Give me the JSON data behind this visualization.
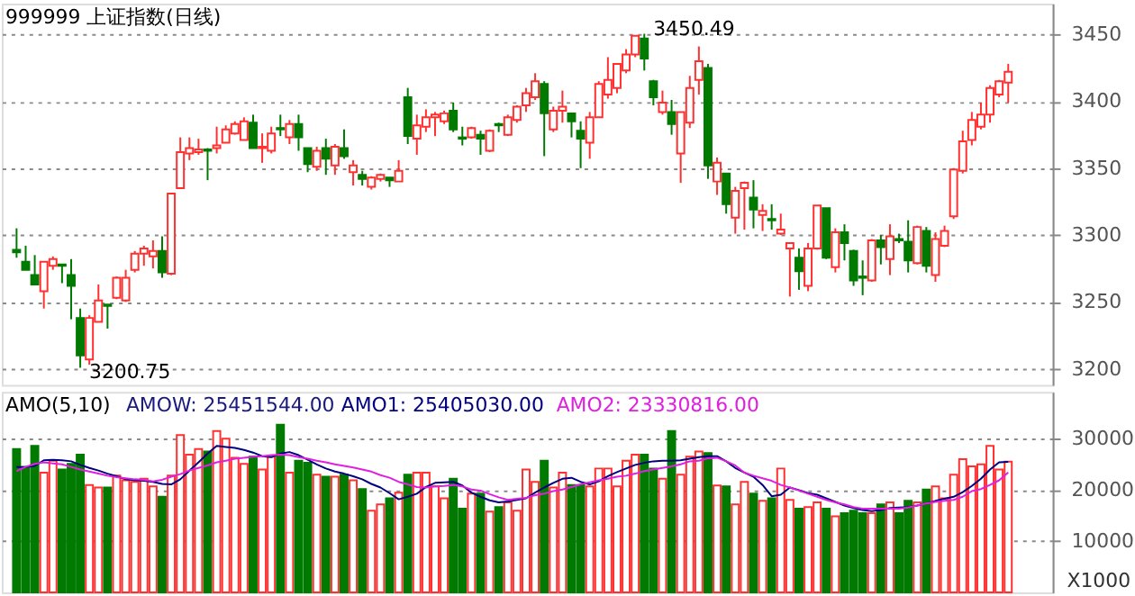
{
  "chart_data": [
    {
      "type": "candlestick",
      "title": "999999 上证指数(日线)",
      "categories": [
        null,
        null,
        null,
        null,
        null,
        null,
        null,
        null,
        null,
        null,
        null,
        null,
        null,
        null,
        null,
        null,
        null,
        null,
        null,
        null,
        null,
        null,
        null,
        null,
        null,
        null,
        null,
        null,
        null,
        null,
        null,
        null,
        null,
        null,
        null,
        null,
        null,
        null,
        null,
        null,
        null,
        null,
        null,
        null,
        null,
        null,
        null,
        null,
        null,
        null,
        null,
        null,
        null,
        null,
        null,
        null,
        null,
        null,
        null,
        null,
        null,
        null,
        null,
        null,
        null,
        null,
        null,
        null,
        null,
        null,
        null,
        null,
        null,
        null,
        null,
        null,
        null,
        null,
        null,
        null,
        null,
        null,
        null,
        null,
        null,
        null,
        null,
        null,
        null,
        null,
        null,
        null,
        null,
        null,
        null,
        null,
        null,
        null,
        null,
        null,
        null,
        null,
        null,
        null,
        null,
        null,
        null,
        null,
        null,
        null
      ],
      "ohlc": [
        [
          3289,
          3305,
          3283,
          3287
        ],
        [
          3280,
          3292,
          3274,
          3274
        ],
        [
          3270,
          3285,
          3263,
          3263
        ],
        [
          3258,
          3280,
          3245,
          3280
        ],
        [
          3277,
          3284,
          3274,
          3282
        ],
        [
          3278,
          3278,
          3264,
          3277
        ],
        [
          3270,
          3282,
          3237,
          3262
        ],
        [
          3238,
          3245,
          3200.75,
          3210
        ],
        [
          3207,
          3240,
          3203,
          3238
        ],
        [
          3235,
          3263,
          3235,
          3251
        ],
        [
          3248,
          3248,
          3230,
          3247
        ],
        [
          3253,
          3269,
          3252,
          3268
        ],
        [
          3251,
          3274,
          3250,
          3268
        ],
        [
          3274,
          3288,
          3272,
          3286
        ],
        [
          3286,
          3292,
          3277,
          3290
        ],
        [
          3284,
          3296,
          3275,
          3288
        ],
        [
          3288,
          3299,
          3268,
          3272
        ],
        [
          3271,
          3331,
          3270,
          3331
        ],
        [
          3335,
          3373,
          3335,
          3362
        ],
        [
          3361,
          3373,
          3356,
          3365
        ],
        [
          3362,
          3372,
          3360,
          3364
        ],
        [
          3364,
          3365,
          3341,
          3363
        ],
        [
          3365,
          3381,
          3361,
          3367
        ],
        [
          3369,
          3382,
          3369,
          3379
        ],
        [
          3376,
          3385,
          3375,
          3383
        ],
        [
          3371,
          3388,
          3371,
          3385
        ],
        [
          3384,
          3390,
          3365,
          3365
        ],
        [
          3365,
          3376,
          3354,
          3366
        ],
        [
          3363,
          3381,
          3361,
          3376
        ],
        [
          3380,
          3390,
          3374,
          3379
        ],
        [
          3373,
          3386,
          3368,
          3383
        ],
        [
          3383,
          3390,
          3363,
          3373
        ],
        [
          3365,
          3365,
          3347,
          3353
        ],
        [
          3351,
          3366,
          3348,
          3363
        ],
        [
          3365,
          3372,
          3345,
          3357
        ],
        [
          3352,
          3368,
          3345,
          3366
        ],
        [
          3365,
          3379,
          3357,
          3359
        ],
        [
          3347,
          3356,
          3337,
          3352
        ],
        [
          3345,
          3348,
          3337,
          3342
        ],
        [
          3336,
          3344,
          3334,
          3343
        ],
        [
          3342,
          3346,
          3340,
          3345
        ],
        [
          3343,
          3343,
          3336,
          3341
        ],
        [
          3340,
          3356,
          3340,
          3348
        ],
        [
          3403,
          3410,
          3368,
          3374
        ],
        [
          3372,
          3390,
          3360,
          3382
        ],
        [
          3381,
          3394,
          3377,
          3388
        ],
        [
          3388,
          3392,
          3374,
          3390
        ],
        [
          3385,
          3393,
          3383,
          3391
        ],
        [
          3393,
          3399,
          3377,
          3379
        ],
        [
          3373,
          3381,
          3367,
          3372
        ],
        [
          3373,
          3381,
          3372,
          3380
        ],
        [
          3375,
          3378,
          3360,
          3372
        ],
        [
          3363,
          3379,
          3362,
          3378
        ],
        [
          3383,
          3384,
          3377,
          3382
        ],
        [
          3375,
          3390,
          3374,
          3388
        ],
        [
          3386,
          3397,
          3384,
          3396
        ],
        [
          3397,
          3410,
          3392,
          3406
        ],
        [
          3403,
          3421,
          3401,
          3415
        ],
        [
          3413,
          3415,
          3359,
          3391
        ],
        [
          3379,
          3396,
          3377,
          3393
        ],
        [
          3393,
          3408,
          3384,
          3396
        ],
        [
          3391,
          3391,
          3373,
          3385
        ],
        [
          3378,
          3385,
          3350,
          3372
        ],
        [
          3369,
          3392,
          3357,
          3388
        ],
        [
          3388,
          3415,
          3388,
          3413
        ],
        [
          3405,
          3433,
          3402,
          3416
        ],
        [
          3410,
          3428,
          3406,
          3428
        ],
        [
          3423,
          3439,
          3421,
          3435
        ],
        [
          3435,
          3449,
          3433,
          3449
        ],
        [
          3447,
          3450.49,
          3423,
          3432
        ],
        [
          3415,
          3416,
          3397,
          3403
        ],
        [
          3392,
          3408,
          3390,
          3399
        ],
        [
          3392,
          3401,
          3375,
          3383
        ],
        [
          3361,
          3392,
          3339,
          3392
        ],
        [
          3384,
          3419,
          3380,
          3410
        ],
        [
          3416,
          3441,
          3405,
          3430
        ],
        [
          3425,
          3428,
          3342,
          3352
        ],
        [
          3340,
          3358,
          3330,
          3354
        ],
        [
          3346,
          3346,
          3316,
          3323
        ],
        [
          3313,
          3336,
          3301,
          3333
        ],
        [
          3335,
          3340,
          3304,
          3339
        ],
        [
          3328,
          3341,
          3305,
          3319
        ],
        [
          3315,
          3323,
          3303,
          3318
        ],
        [
          3312,
          3323,
          3304,
          3311
        ],
        [
          3301,
          3316,
          3300,
          3304
        ],
        [
          3290,
          3294,
          3254,
          3294
        ],
        [
          3283,
          3290,
          3259,
          3273
        ],
        [
          3262,
          3294,
          3258,
          3290
        ],
        [
          3290,
          3322,
          3289,
          3322
        ],
        [
          3320,
          3320,
          3282,
          3283
        ],
        [
          3276,
          3305,
          3272,
          3302
        ],
        [
          3302,
          3308,
          3281,
          3294
        ],
        [
          3288,
          3289,
          3262,
          3266
        ],
        [
          3269,
          3281,
          3255,
          3268
        ],
        [
          3266,
          3297,
          3265,
          3296
        ],
        [
          3296,
          3300,
          3278,
          3291
        ],
        [
          3282,
          3308,
          3270,
          3299
        ],
        [
          3297,
          3301,
          3294,
          3296
        ],
        [
          3295,
          3311,
          3272,
          3281
        ],
        [
          3279,
          3307,
          3278,
          3306
        ],
        [
          3303,
          3306,
          3272,
          3277
        ],
        [
          3270,
          3302,
          3265,
          3297
        ],
        [
          3292,
          3307,
          3291,
          3303
        ],
        [
          3314,
          3350,
          3312,
          3349
        ],
        [
          3348,
          3378,
          3346,
          3370
        ],
        [
          3371,
          3392,
          3367,
          3386
        ],
        [
          3381,
          3399,
          3379,
          3390
        ],
        [
          3390,
          3412,
          3384,
          3410
        ],
        [
          3405,
          3416,
          3403,
          3415
        ],
        [
          3414,
          3428,
          3399,
          3422
        ]
      ],
      "ylim": [
        3188,
        3473
      ],
      "yticks": [
        3200,
        3250,
        3300,
        3350,
        3400,
        3450
      ],
      "grid": "y",
      "annotations": [
        "3450.49",
        "3200.75"
      ]
    },
    {
      "type": "bar",
      "title": "AMO(5,10)",
      "categories": [
        null,
        null,
        null,
        null,
        null,
        null,
        null,
        null,
        null,
        null,
        null,
        null,
        null,
        null,
        null,
        null,
        null,
        null,
        null,
        null,
        null,
        null,
        null,
        null,
        null,
        null,
        null,
        null,
        null,
        null,
        null,
        null,
        null,
        null,
        null,
        null,
        null,
        null,
        null,
        null,
        null,
        null,
        null,
        null,
        null,
        null,
        null,
        null,
        null,
        null,
        null,
        null,
        null,
        null,
        null,
        null,
        null,
        null,
        null,
        null,
        null,
        null,
        null,
        null,
        null,
        null,
        null,
        null,
        null,
        null,
        null,
        null,
        null,
        null,
        null,
        null,
        null,
        null,
        null,
        null,
        null,
        null,
        null,
        null,
        null,
        null,
        null,
        null,
        null,
        null,
        null,
        null,
        null,
        null,
        null,
        null,
        null,
        null,
        null,
        null,
        null,
        null,
        null,
        null,
        null,
        null,
        null,
        null,
        null,
        null
      ],
      "series": [
        {
          "colors": [
            "#007a00",
            "#007a00",
            "#007a00",
            "#ff3030",
            "#ff3030",
            "#007a00",
            "#007a00",
            "#007a00",
            "#ff3030",
            "#ff3030",
            "#007a00",
            "#ff3030",
            "#ff3030",
            "#ff3030",
            "#ff3030",
            "#ff3030",
            "#007a00",
            "#ff3030",
            "#ff3030",
            "#ff3030",
            "#ff3030",
            "#007a00",
            "#ff3030",
            "#ff3030",
            "#ff3030",
            "#ff3030",
            "#007a00",
            "#ff3030",
            "#ff3030",
            "#007a00",
            "#ff3030",
            "#007a00",
            "#007a00",
            "#ff3030",
            "#007a00",
            "#ff3030",
            "#007a00",
            "#ff3030",
            "#007a00",
            "#ff3030",
            "#ff3030",
            "#007a00",
            "#ff3030",
            "#007a00",
            "#ff3030",
            "#ff3030",
            "#ff3030",
            "#ff3030",
            "#007a00",
            "#007a00",
            "#ff3030",
            "#007a00",
            "#ff3030",
            "#007a00",
            "#ff3030",
            "#ff3030",
            "#ff3030",
            "#ff3030",
            "#007a00",
            "#ff3030",
            "#ff3030",
            "#007a00",
            "#007a00",
            "#ff3030",
            "#ff3030",
            "#ff3030",
            "#ff3030",
            "#ff3030",
            "#ff3030",
            "#007a00",
            "#007a00",
            "#ff3030",
            "#007a00",
            "#ff3030",
            "#ff3030",
            "#ff3030",
            "#007a00",
            "#ff3030",
            "#007a00",
            "#ff3030",
            "#ff3030",
            "#007a00",
            "#ff3030",
            "#007a00",
            "#ff3030",
            "#ff3030",
            "#007a00",
            "#ff3030",
            "#ff3030",
            "#007a00",
            "#ff3030",
            "#007a00",
            "#007a00",
            "#007a00",
            "#ff3030",
            "#007a00",
            "#ff3030",
            "#007a00",
            "#007a00",
            "#ff3030",
            "#007a00",
            "#ff3030",
            "#ff3030",
            "#ff3030",
            "#ff3030",
            "#ff3030",
            "#ff3030",
            "#ff3030",
            "#ff3030",
            "#ff3030"
          ],
          "values": [
            27900,
            24400,
            28500,
            23300,
            25600,
            23900,
            25000,
            26800,
            20900,
            20400,
            20400,
            22700,
            21800,
            21500,
            22100,
            20600,
            18600,
            22700,
            30600,
            26800,
            27900,
            27400,
            31400,
            29900,
            26200,
            25000,
            26400,
            23900,
            26400,
            32600,
            23300,
            25600,
            25200,
            22900,
            22500,
            22500,
            22900,
            21800,
            20100,
            15900,
            17100,
            18300,
            19400,
            22900,
            23300,
            23300,
            20600,
            18300,
            22100,
            16300,
            19200,
            19200,
            15700,
            16600,
            17500,
            15900,
            23900,
            21500,
            25600,
            20400,
            23300,
            20900,
            20900,
            20600,
            24100,
            24100,
            20600,
            25600,
            26800,
            26800,
            24100,
            22100,
            31400,
            22900,
            26400,
            27400,
            27100,
            20800,
            20600,
            17100,
            21500,
            19200,
            17800,
            18300,
            24100,
            18000,
            16300,
            16600,
            17500,
            16300,
            14800,
            15400,
            15900,
            15400,
            15400,
            17100,
            17500,
            15400,
            17800,
            17500,
            20000,
            20600,
            18300,
            22900,
            25900,
            24500,
            24900,
            28500,
            23900,
            25450
          ]
        },
        {
          "type": "line",
          "name": "AMO1: 25405030.00",
          "color": "#000080",
          "values": [
            24400,
            24400,
            24600,
            25700,
            25800,
            25700,
            25500,
            24800,
            24200,
            23700,
            23100,
            22600,
            22000,
            21800,
            21700,
            21500,
            21100,
            21000,
            22000,
            23700,
            25300,
            27000,
            28500,
            28300,
            28100,
            27700,
            27200,
            26500,
            26300,
            27000,
            27300,
            26700,
            25800,
            24900,
            24100,
            23500,
            23100,
            22600,
            22000,
            21100,
            20400,
            19300,
            18100,
            18600,
            19200,
            20500,
            21300,
            21400,
            21500,
            20800,
            19400,
            18600,
            17900,
            17500,
            17700,
            18000,
            18300,
            19400,
            20400,
            21300,
            22100,
            22300,
            21500,
            21000,
            21600,
            22600,
            23400,
            24100,
            24800,
            25200,
            25500,
            25600,
            25600,
            25700,
            26000,
            26300,
            26500,
            26500,
            25500,
            24200,
            23300,
            22500,
            20900,
            18700,
            19000,
            20400,
            19900,
            19300,
            19000,
            18300,
            17600,
            16900,
            16400,
            16000,
            15800,
            16000,
            16400,
            16500,
            16600,
            16900,
            17300,
            17800,
            18200,
            18600,
            19500,
            20700,
            22100,
            23900,
            25300,
            25400
          ]
        },
        {
          "type": "line",
          "name": "AMO2: 23330816.00",
          "color": "#e020e0",
          "values": [
            23600,
            24400,
            25000,
            25300,
            25100,
            24900,
            24400,
            23900,
            23500,
            23100,
            22700,
            22400,
            22200,
            22000,
            21900,
            21600,
            21900,
            22500,
            23000,
            23700,
            24200,
            24700,
            25300,
            25600,
            26000,
            26200,
            26400,
            26500,
            26700,
            26800,
            26700,
            26300,
            26000,
            25600,
            25300,
            24900,
            24600,
            24300,
            23900,
            23500,
            22800,
            22300,
            21500,
            21000,
            20500,
            20400,
            20600,
            20700,
            20900,
            20600,
            20000,
            19800,
            19100,
            18500,
            18000,
            18200,
            18400,
            18900,
            19200,
            19700,
            20000,
            20500,
            21000,
            21400,
            21800,
            22100,
            22500,
            22700,
            23100,
            23600,
            23900,
            24200,
            24500,
            24900,
            25500,
            25600,
            26100,
            26200,
            25500,
            24700,
            23300,
            22700,
            22200,
            21700,
            20900,
            20400,
            19800,
            19200,
            18600,
            18000,
            17500,
            17100,
            16600,
            16300,
            16300,
            16300,
            16300,
            16300,
            16500,
            16900,
            17300,
            17600,
            17800,
            18000,
            18600,
            19700,
            20100,
            20900,
            21800,
            23330
          ]
        }
      ],
      "ylim": [
        0,
        39000
      ],
      "yticks": [
        10000,
        20000,
        30000
      ],
      "grid": "y",
      "ylabel": "X1000",
      "annotations": [
        "AMOW: 25451544.00"
      ]
    }
  ]
}
